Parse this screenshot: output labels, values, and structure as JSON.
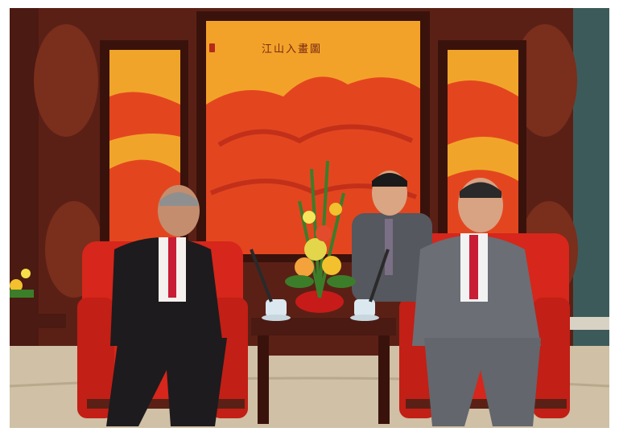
{
  "photo": {
    "alt": "",
    "screen_inscription": "江山入畫圖"
  },
  "palette": {
    "wood": "#5a2016",
    "wood_dark": "#3a120c",
    "lacquer": "#e3461f",
    "gold_panel": "#f0a52a",
    "chair_red": "#d7261b",
    "suit_black": "#1d1b1d",
    "suit_grey": "#6b6e74",
    "tie_red": "#c81d35",
    "carpet": "#cfc0a6"
  }
}
